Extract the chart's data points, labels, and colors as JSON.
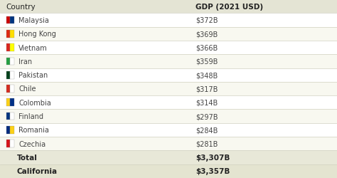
{
  "header": [
    "Country",
    "GDP (2021 USD)"
  ],
  "rows": [
    [
      " Malaysia",
      "$372B"
    ],
    [
      " Hong Kong",
      "$369B"
    ],
    [
      " Vietnam",
      "$366B"
    ],
    [
      " Iran",
      "$359B"
    ],
    [
      " Pakistan",
      "$348B"
    ],
    [
      " Chile",
      "$317B"
    ],
    [
      " Colombia",
      "$314B"
    ],
    [
      " Finland",
      "$297B"
    ],
    [
      " Romania",
      "$284B"
    ],
    [
      " Czechia",
      "$281B"
    ]
  ],
  "flag_colors": [
    [
      "#CC0001",
      "#003580"
    ],
    [
      "#DE2910",
      "#FFDE00"
    ],
    [
      "#DA251D",
      "#FFFF00"
    ],
    [
      "#239F40",
      "#FFFFFF"
    ],
    [
      "#01411C",
      "#FFFFFF"
    ],
    [
      "#D52B1E",
      "#FFFFFF"
    ],
    [
      "#FCD116",
      "#003087"
    ],
    [
      "#003580",
      "#FFFFFF"
    ],
    [
      "#002B7F",
      "#FCD116"
    ],
    [
      "#D7141A",
      "#FFFFFF"
    ]
  ],
  "total_row": [
    "Total",
    "$3,307B"
  ],
  "california_row": [
    "California",
    "$3,357B"
  ],
  "bg_color": "#f0f0e4",
  "header_bg": "#e4e4d4",
  "row_bg_white": "#ffffff",
  "row_bg_light": "#f8f8f0",
  "total_bg": "#e8e8d8",
  "california_bg": "#e4e4d0",
  "text_color": "#444444",
  "bold_color": "#222222",
  "header_font_size": 7.5,
  "row_font_size": 7.0,
  "total_font_size": 7.5,
  "border_color": "#d0d0c0",
  "col_split": 0.56
}
